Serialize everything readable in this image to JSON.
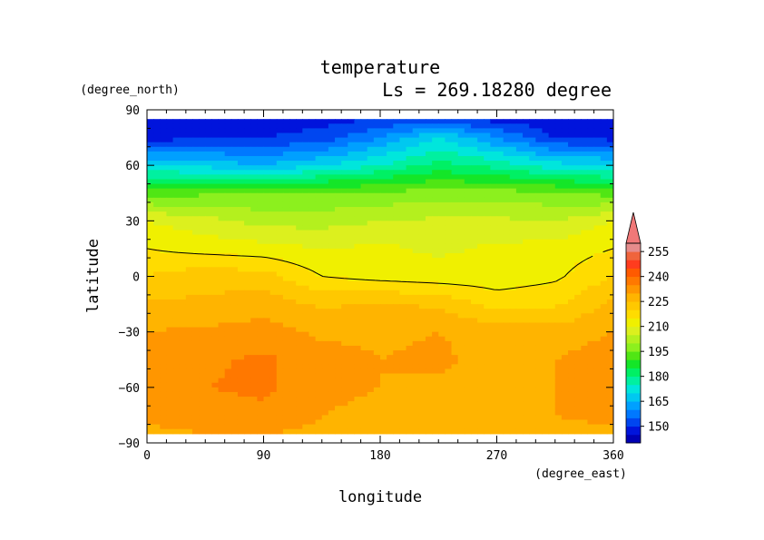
{
  "chart_data": {
    "type": "heatmap",
    "title": "temperature",
    "subtitle": "Ls = 269.18280 degree",
    "xlabel": "longitude",
    "ylabel": "latitude",
    "x_unit": "(degree_east)",
    "y_unit": "(degree_north)",
    "xlim": [
      0,
      360
    ],
    "ylim": [
      -90,
      90
    ],
    "x_ticks": [
      "0",
      "90",
      "180",
      "270",
      "360"
    ],
    "y_ticks": [
      "90",
      "60",
      "30",
      "0",
      "−30",
      "−60",
      "−90"
    ],
    "x_tick_values": [
      0,
      90,
      180,
      270,
      360
    ],
    "y_tick_values": [
      90,
      60,
      30,
      0,
      -30,
      -60,
      -90
    ],
    "colorbar": {
      "levels": [
        140,
        145,
        150,
        155,
        160,
        165,
        170,
        175,
        180,
        185,
        190,
        195,
        200,
        205,
        210,
        215,
        220,
        225,
        230,
        235,
        240,
        245,
        250,
        255,
        260
      ],
      "labels": [
        "150",
        "165",
        "180",
        "195",
        "210",
        "225",
        "240",
        "255"
      ],
      "colors": [
        "#0000b4",
        "#0014dc",
        "#0046f0",
        "#0078ff",
        "#00a0ff",
        "#00c8f0",
        "#00e6dc",
        "#00f0a0",
        "#00f064",
        "#14e628",
        "#50e614",
        "#8cf01e",
        "#b4f01e",
        "#dcf01e",
        "#f0f000",
        "#ffdc00",
        "#ffc800",
        "#ffb400",
        "#ff9600",
        "#ff7800",
        "#ff5a00",
        "#ff3c1e",
        "#f0643c",
        "#e68c8c"
      ],
      "extend_max_color": "#f07878"
    },
    "grid": {
      "lat": [
        85,
        75,
        60,
        45,
        30,
        15,
        0,
        -15,
        -30,
        -45,
        -60,
        -75,
        -85
      ],
      "lon": [
        0,
        45,
        90,
        135,
        180,
        225,
        270,
        315,
        360
      ],
      "values": [
        [
          146,
          146,
          147,
          148,
          150,
          152,
          148,
          146,
          146
        ],
        [
          147,
          150,
          150,
          152,
          160,
          170,
          160,
          150,
          148
        ],
        [
          170,
          168,
          165,
          170,
          175,
          182,
          178,
          172,
          170
        ],
        [
          193,
          194,
          195,
          195,
          196,
          197,
          197,
          196,
          193
        ],
        [
          210,
          207,
          203,
          203,
          205,
          206,
          206,
          205,
          210
        ],
        [
          215,
          213,
          212,
          210,
          211,
          209,
          211,
          212,
          215
        ],
        [
          220,
          223,
          222,
          215,
          213,
          212,
          212,
          214,
          220
        ],
        [
          226,
          226,
          228,
          224,
          226,
          224,
          218,
          219,
          226
        ],
        [
          230,
          231,
          232,
          229,
          229,
          230,
          228,
          227,
          230
        ],
        [
          233,
          234,
          236,
          232,
          230,
          231,
          228,
          230,
          233
        ],
        [
          232,
          235,
          236,
          232,
          230,
          229,
          229,
          230,
          232
        ],
        [
          231,
          232,
          234,
          230,
          228,
          228,
          229,
          230,
          231
        ],
        [
          229,
          230,
          230,
          229,
          228,
          228,
          229,
          229,
          229
        ]
      ],
      "contour_value": 215
    },
    "extent": {
      "lon": [
        0,
        360
      ],
      "lat": [
        -85,
        85
      ]
    }
  }
}
